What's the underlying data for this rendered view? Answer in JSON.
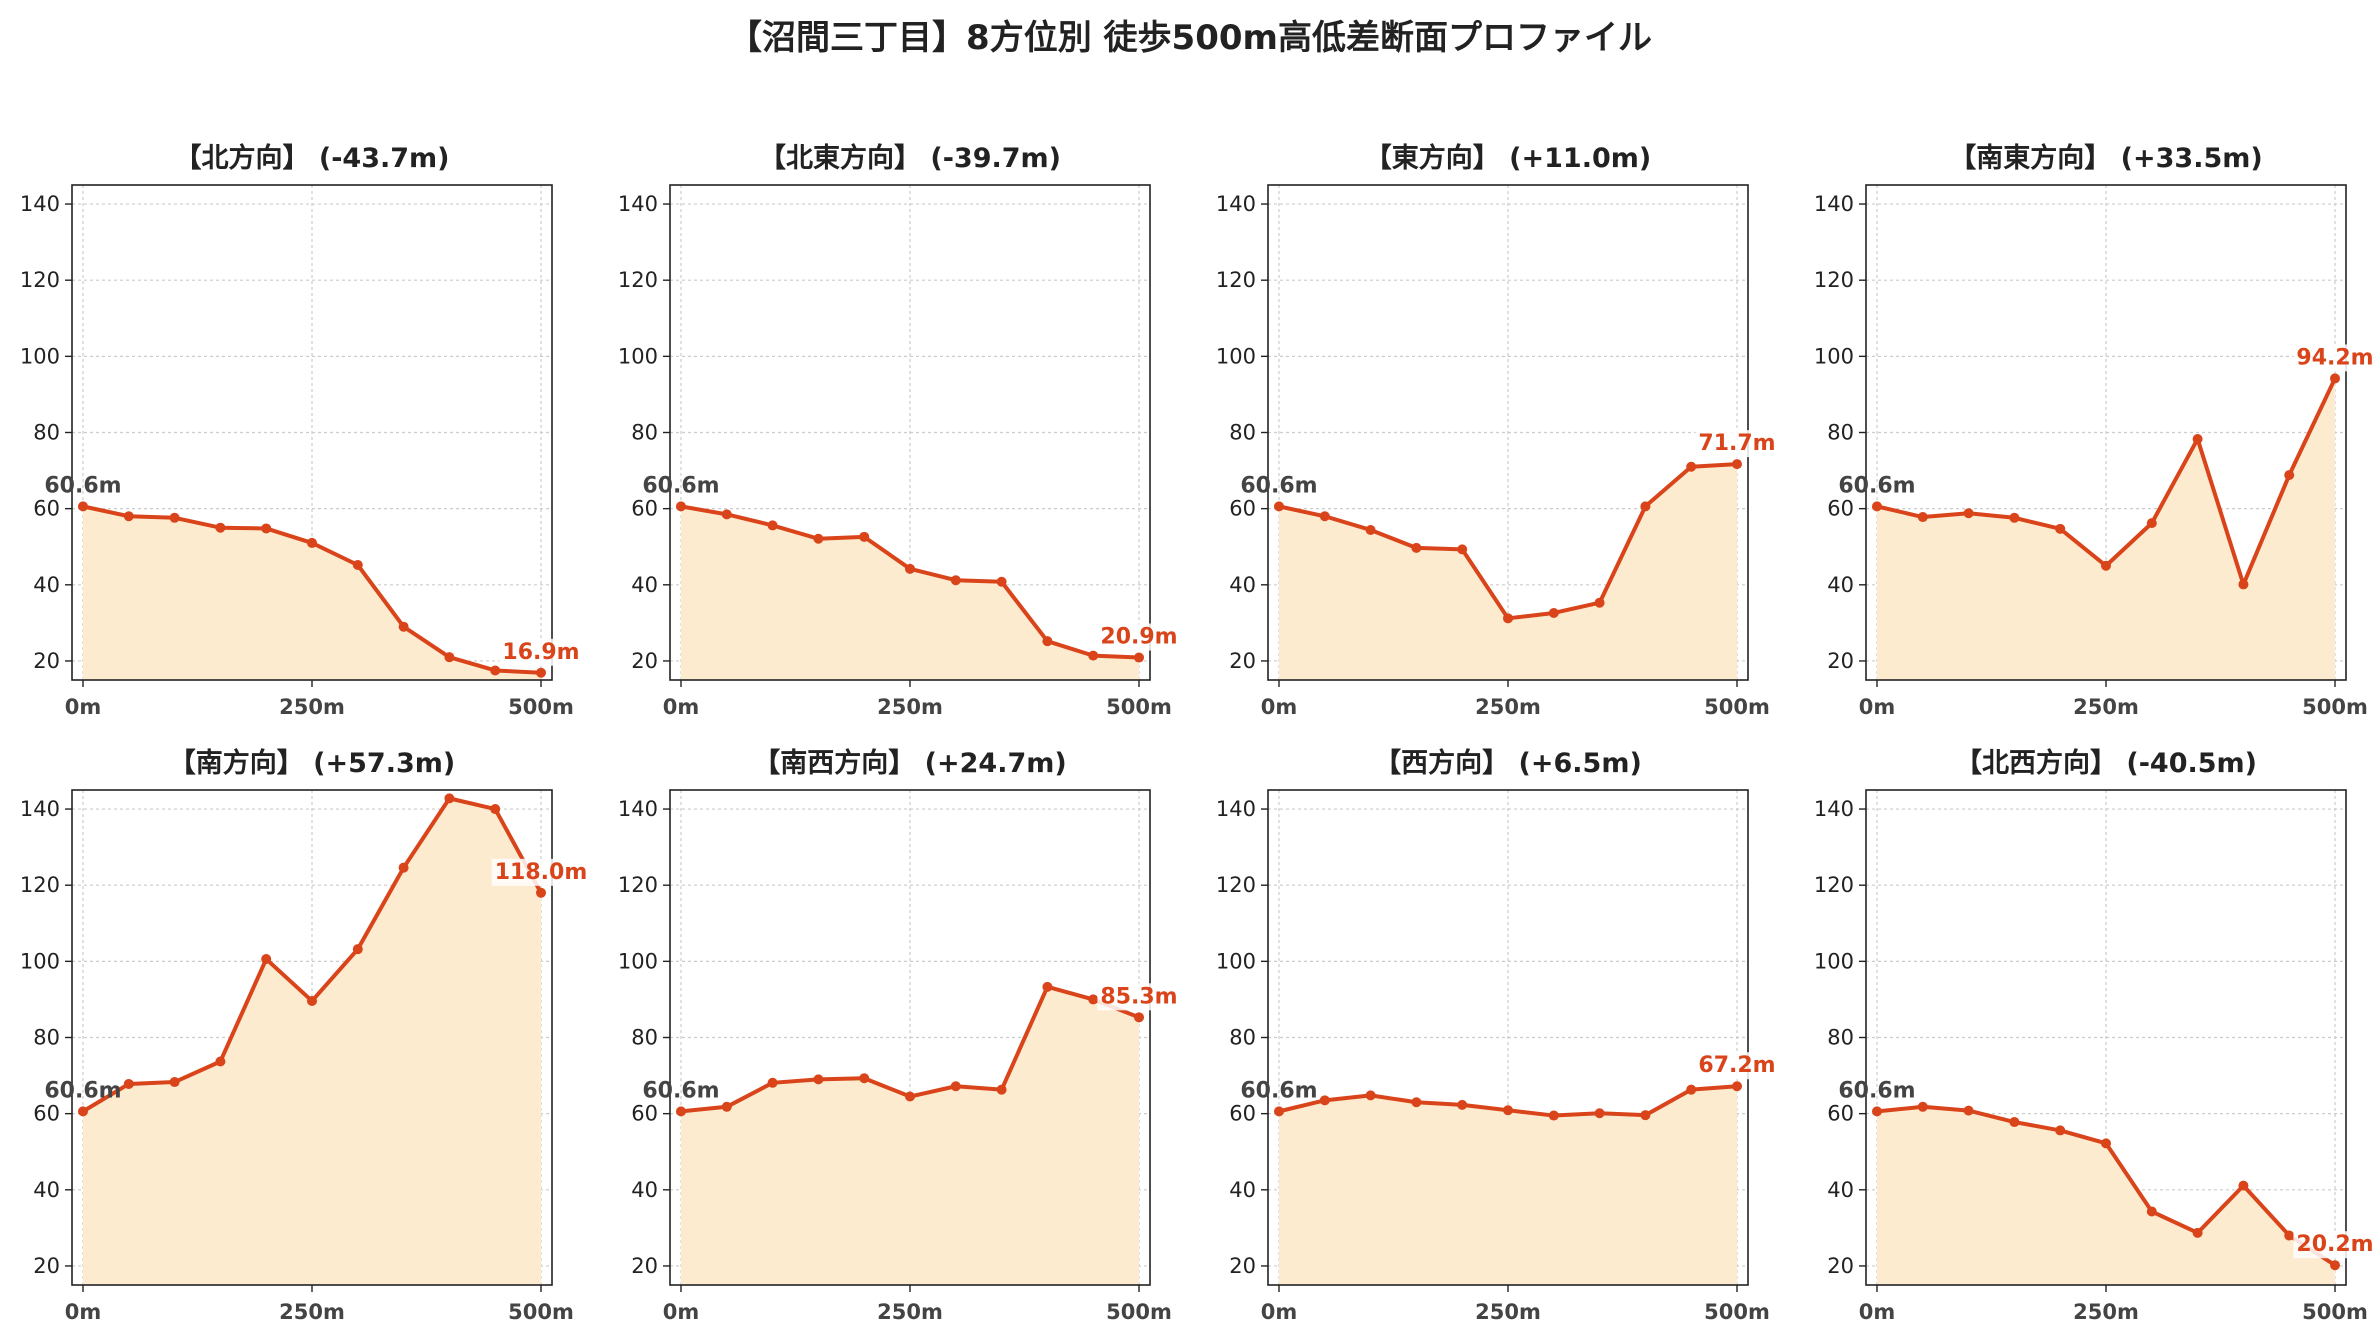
{
  "title": "【沼間三丁目】8方位別 徒歩500m高低差断面プロファイル",
  "colors": {
    "line": "#d9441a",
    "fill": "#fdebd0",
    "grid": "#cccccc",
    "text": "#222222",
    "start_label": "#444444"
  },
  "chart_data": [
    {
      "type": "area",
      "title": "【北方向】 (-43.7m)",
      "x": [
        0,
        50,
        100,
        150,
        200,
        250,
        300,
        350,
        400,
        450,
        500
      ],
      "y": [
        60.6,
        58.0,
        57.6,
        55.0,
        54.8,
        51.0,
        45.2,
        29.0,
        21.0,
        17.5,
        16.9
      ],
      "xticks": [
        0,
        250,
        500
      ],
      "xtick_labels": [
        "0m",
        "250m",
        "500m"
      ],
      "yticks": [
        20,
        40,
        60,
        80,
        100,
        120,
        140
      ],
      "xlim": [
        -12,
        512
      ],
      "ylim": [
        15,
        145
      ],
      "grid": true,
      "start_label": "60.6m",
      "end_label": "16.9m"
    },
    {
      "type": "area",
      "title": "【北東方向】 (-39.7m)",
      "x": [
        0,
        50,
        100,
        150,
        200,
        250,
        300,
        350,
        400,
        450,
        500
      ],
      "y": [
        60.6,
        58.5,
        55.6,
        52.1,
        52.6,
        44.2,
        41.2,
        40.8,
        25.2,
        21.4,
        20.9
      ],
      "xticks": [
        0,
        250,
        500
      ],
      "xtick_labels": [
        "0m",
        "250m",
        "500m"
      ],
      "yticks": [
        20,
        40,
        60,
        80,
        100,
        120,
        140
      ],
      "xlim": [
        -12,
        512
      ],
      "ylim": [
        15,
        145
      ],
      "grid": true,
      "start_label": "60.6m",
      "end_label": "20.9m"
    },
    {
      "type": "area",
      "title": "【東方向】 (+11.0m)",
      "x": [
        0,
        50,
        100,
        150,
        200,
        250,
        300,
        350,
        400,
        450,
        500
      ],
      "y": [
        60.6,
        58.0,
        54.4,
        49.7,
        49.3,
        31.2,
        32.6,
        35.3,
        60.6,
        71.0,
        71.7
      ],
      "xticks": [
        0,
        250,
        500
      ],
      "xtick_labels": [
        "0m",
        "250m",
        "500m"
      ],
      "yticks": [
        20,
        40,
        60,
        80,
        100,
        120,
        140
      ],
      "xlim": [
        -12,
        512
      ],
      "ylim": [
        15,
        145
      ],
      "grid": true,
      "start_label": "60.6m",
      "end_label": "71.7m"
    },
    {
      "type": "area",
      "title": "【南東方向】 (+33.5m)",
      "x": [
        0,
        50,
        100,
        150,
        200,
        250,
        300,
        350,
        400,
        450,
        500
      ],
      "y": [
        60.6,
        57.8,
        58.8,
        57.6,
        54.7,
        45.0,
        56.2,
        78.3,
        40.1,
        68.8,
        94.2
      ],
      "xticks": [
        0,
        250,
        500
      ],
      "xtick_labels": [
        "0m",
        "250m",
        "500m"
      ],
      "yticks": [
        20,
        40,
        60,
        80,
        100,
        120,
        140
      ],
      "xlim": [
        -12,
        512
      ],
      "ylim": [
        15,
        145
      ],
      "grid": true,
      "start_label": "60.6m",
      "end_label": "94.2m"
    },
    {
      "type": "area",
      "title": "【南方向】 (+57.3m)",
      "x": [
        0,
        50,
        100,
        150,
        200,
        250,
        300,
        350,
        400,
        450,
        500
      ],
      "y": [
        60.6,
        67.8,
        68.3,
        73.7,
        100.6,
        89.6,
        103.2,
        124.6,
        142.8,
        140.0,
        118.0
      ],
      "xticks": [
        0,
        250,
        500
      ],
      "xtick_labels": [
        "0m",
        "250m",
        "500m"
      ],
      "yticks": [
        20,
        40,
        60,
        80,
        100,
        120,
        140
      ],
      "xlim": [
        -12,
        512
      ],
      "ylim": [
        15,
        145
      ],
      "grid": true,
      "start_label": "60.6m",
      "end_label": "118.0m"
    },
    {
      "type": "area",
      "title": "【南西方向】 (+24.7m)",
      "x": [
        0,
        50,
        100,
        150,
        200,
        250,
        300,
        350,
        400,
        450,
        500
      ],
      "y": [
        60.6,
        61.8,
        68.1,
        69.0,
        69.3,
        64.5,
        67.2,
        66.3,
        93.3,
        90.0,
        85.3
      ],
      "xticks": [
        0,
        250,
        500
      ],
      "xtick_labels": [
        "0m",
        "250m",
        "500m"
      ],
      "yticks": [
        20,
        40,
        60,
        80,
        100,
        120,
        140
      ],
      "xlim": [
        -12,
        512
      ],
      "ylim": [
        15,
        145
      ],
      "grid": true,
      "start_label": "60.6m",
      "end_label": "85.3m"
    },
    {
      "type": "area",
      "title": "【西方向】 (+6.5m)",
      "x": [
        0,
        50,
        100,
        150,
        200,
        250,
        300,
        350,
        400,
        450,
        500
      ],
      "y": [
        60.6,
        63.5,
        64.8,
        63.0,
        62.3,
        60.9,
        59.5,
        60.1,
        59.6,
        66.3,
        67.2
      ],
      "xticks": [
        0,
        250,
        500
      ],
      "xtick_labels": [
        "0m",
        "250m",
        "500m"
      ],
      "yticks": [
        20,
        40,
        60,
        80,
        100,
        120,
        140
      ],
      "xlim": [
        -12,
        512
      ],
      "ylim": [
        15,
        145
      ],
      "grid": true,
      "start_label": "60.6m",
      "end_label": "67.2m"
    },
    {
      "type": "area",
      "title": "【北西方向】 (-40.5m)",
      "x": [
        0,
        50,
        100,
        150,
        200,
        250,
        300,
        350,
        400,
        450,
        500
      ],
      "y": [
        60.6,
        61.8,
        60.8,
        57.8,
        55.6,
        52.2,
        34.3,
        28.7,
        41.1,
        28.0,
        20.2
      ],
      "xticks": [
        0,
        250,
        500
      ],
      "xtick_labels": [
        "0m",
        "250m",
        "500m"
      ],
      "yticks": [
        20,
        40,
        60,
        80,
        100,
        120,
        140
      ],
      "xlim": [
        -12,
        512
      ],
      "ylim": [
        15,
        145
      ],
      "grid": true,
      "start_label": "60.6m",
      "end_label": "20.2m"
    }
  ]
}
